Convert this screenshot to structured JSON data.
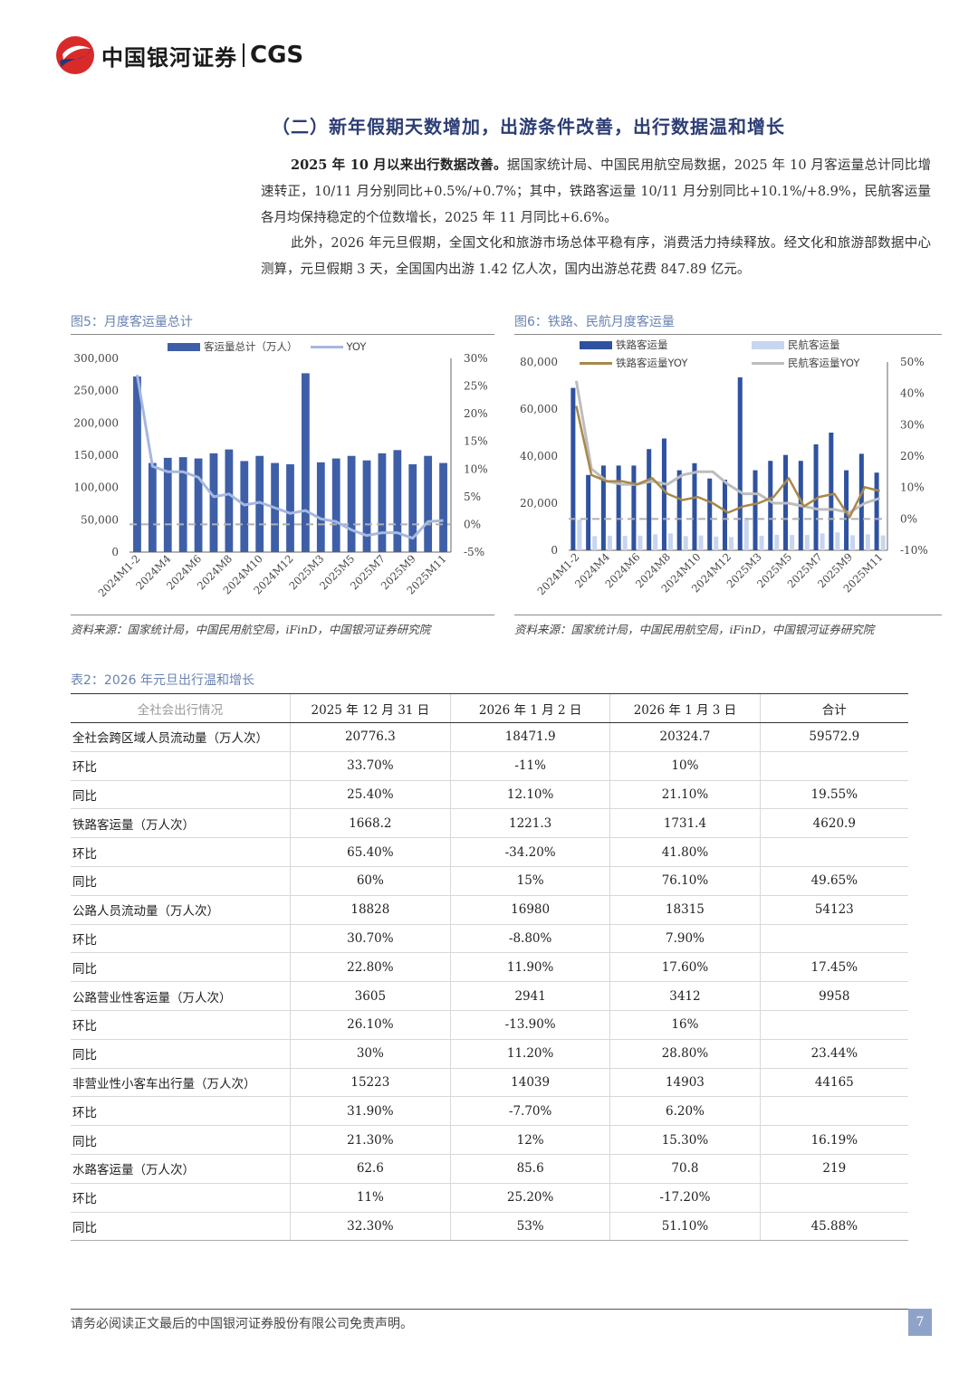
{
  "header": {
    "logo_cn": "中国银河证券",
    "logo_en": "CGS"
  },
  "section_title": "（二）新年假期天数增加，出游条件改善，出行数据温和增长",
  "para1_lead": "2025 年 10 月以来出行数据改善。",
  "para1_body": "据国家统计局、中国民用航空局数据，2025 年 10 月客运量总计同比增速转正，10/11 月分别同比+0.5%/+0.7%；其中，铁路客运量 10/11 月分别同比+10.1%/+8.9%，民航客运量各月均保持稳定的个位数增长，2025 年 11 月同比+6.6%。",
  "para2": "此外，2026 年元旦假期，全国文化和旅游市场总体平稳有序，消费活力持续释放。经文化和旅游部数据中心测算，元旦假期 3 天，全国国内出游 1.42 亿人次，国内出游总花费 847.89 亿元。",
  "fig5": {
    "title": "图5：月度客运量总计",
    "source": "资料来源：国家统计局，中国民用航空局，iFinD，中国银河证券研究院",
    "chart_data": {
      "type": "bar",
      "legend": [
        "客运量总计（万人）",
        "YOY"
      ],
      "categories": [
        "2024M1-2",
        "2024M3",
        "2024M4",
        "2024M5",
        "2024M6",
        "2024M7",
        "2024M8",
        "2024M9",
        "2024M10",
        "2024M11",
        "2024M12",
        "2025M1-2",
        "2025M3",
        "2025M4",
        "2025M5",
        "2025M6",
        "2025M7",
        "2025M8",
        "2025M9",
        "2025M10",
        "2025M11"
      ],
      "x_tick_labels": [
        "2024M1-2",
        "2024M4",
        "2024M6",
        "2024M8",
        "2024M10",
        "2024M12",
        "2025M3",
        "2025M5",
        "2025M7",
        "2025M9",
        "2025M11"
      ],
      "values": [
        272000,
        138000,
        146000,
        147000,
        145000,
        153000,
        159000,
        141000,
        149000,
        138000,
        136000,
        277000,
        139000,
        145000,
        149000,
        142000,
        153000,
        158000,
        136000,
        149000,
        138000
      ],
      "yoy": [
        27,
        10.5,
        9.5,
        9.5,
        8.5,
        5,
        5.5,
        3.5,
        4,
        3,
        2,
        2.5,
        1,
        0.5,
        -1,
        -2,
        -1.5,
        -1.5,
        -2.5,
        0.5,
        0.7
      ],
      "ylim": [
        0,
        300000
      ],
      "y_ticks": [
        "0",
        "50,000",
        "100,000",
        "150,000",
        "200,000",
        "250,000",
        "300,000"
      ],
      "y2lim": [
        -5,
        30
      ],
      "y2_ticks": [
        "-5%",
        "0%",
        "5%",
        "10%",
        "15%",
        "20%",
        "25%",
        "30%"
      ],
      "colors": {
        "bar": "#3e5fa8",
        "line": "#a6b8e0",
        "zero": "#b0b0b0"
      }
    }
  },
  "fig6": {
    "title": "图6：铁路、民航月度客运量",
    "source": "资料来源：国家统计局，中国民用航空局，iFinD，中国银河证券研究院",
    "chart_data": {
      "type": "bar",
      "legend": [
        "铁路客运量",
        "民航客运量",
        "铁路客运量YOY",
        "民航客运量YOY"
      ],
      "categories": [
        "2024M1-2",
        "2024M3",
        "2024M4",
        "2024M5",
        "2024M6",
        "2024M7",
        "2024M8",
        "2024M9",
        "2024M10",
        "2024M11",
        "2024M12",
        "2025M1-2",
        "2025M3",
        "2025M4",
        "2025M5",
        "2025M6",
        "2025M7",
        "2025M8",
        "2025M9",
        "2025M10",
        "2025M11"
      ],
      "x_tick_labels": [
        "2024M1-2",
        "2024M4",
        "2024M6",
        "2024M8",
        "2024M10",
        "2024M12",
        "2025M3",
        "2025M5",
        "2025M7",
        "2025M9",
        "2025M11"
      ],
      "series": [
        {
          "name": "铁路客运量",
          "values": [
            69000,
            32000,
            36000,
            36000,
            36000,
            43000,
            47500,
            34000,
            37000,
            30500,
            30000,
            73500,
            34000,
            38000,
            40500,
            38000,
            45000,
            50000,
            34000,
            41000,
            33000
          ]
        },
        {
          "name": "民航客运量",
          "values": [
            13000,
            6000,
            6200,
            6100,
            6200,
            6800,
            7200,
            6000,
            6300,
            5800,
            5600,
            13800,
            6200,
            6600,
            6500,
            6500,
            7200,
            7600,
            6400,
            6800,
            6300
          ]
        },
        {
          "name": "铁路客运量YOY",
          "values": [
            36,
            14,
            12,
            12,
            11,
            13,
            8,
            6,
            7,
            5,
            2,
            4,
            5,
            7,
            13,
            4,
            7,
            8,
            0.5,
            10.1,
            8.9
          ]
        },
        {
          "name": "民航客运量YOY",
          "values": [
            44,
            16,
            12,
            11,
            11,
            12,
            11,
            14,
            15,
            15,
            11,
            8,
            8,
            5,
            5,
            4,
            3,
            3,
            2,
            5,
            6.6
          ]
        }
      ],
      "ylim": [
        0,
        80000
      ],
      "y_ticks": [
        "0",
        "20,000",
        "40,000",
        "60,000",
        "80,000"
      ],
      "y2lim": [
        -10,
        50
      ],
      "y2_ticks": [
        "-10%",
        "0%",
        "10%",
        "20%",
        "30%",
        "40%",
        "50%"
      ],
      "colors": {
        "rail": "#2f52a0",
        "air": "#c7d5ee",
        "rail_yoy": "#a8884a",
        "air_yoy": "#bdbdbd",
        "zero": "#b0b0b0"
      }
    }
  },
  "table": {
    "title": "表2：2026 年元旦出行温和增长",
    "headers": [
      "全社会出行情况",
      "2025 年 12 月 31 日",
      "2026 年 1 月 2 日",
      "2026 年 1 月 3 日",
      "合计"
    ],
    "rows": [
      [
        "全社会跨区域人员流动量（万人次）",
        "20776.3",
        "18471.9",
        "20324.7",
        "59572.9"
      ],
      [
        "环比",
        "33.70%",
        "-11%",
        "10%",
        ""
      ],
      [
        "同比",
        "25.40%",
        "12.10%",
        "21.10%",
        "19.55%"
      ],
      [
        "铁路客运量（万人次）",
        "1668.2",
        "1221.3",
        "1731.4",
        "4620.9"
      ],
      [
        "环比",
        "65.40%",
        "-34.20%",
        "41.80%",
        ""
      ],
      [
        "同比",
        "60%",
        "15%",
        "76.10%",
        "49.65%"
      ],
      [
        "公路人员流动量（万人次）",
        "18828",
        "16980",
        "18315",
        "54123"
      ],
      [
        "环比",
        "30.70%",
        "-8.80%",
        "7.90%",
        ""
      ],
      [
        "同比",
        "22.80%",
        "11.90%",
        "17.60%",
        "17.45%"
      ],
      [
        "公路营业性客运量（万人次）",
        "3605",
        "2941",
        "3412",
        "9958"
      ],
      [
        "环比",
        "26.10%",
        "-13.90%",
        "16%",
        ""
      ],
      [
        "同比",
        "30%",
        "11.20%",
        "28.80%",
        "23.44%"
      ],
      [
        "非营业性小客车出行量（万人次）",
        "15223",
        "14039",
        "14903",
        "44165"
      ],
      [
        "环比",
        "31.90%",
        "-7.70%",
        "6.20%",
        ""
      ],
      [
        "同比",
        "21.30%",
        "12%",
        "15.30%",
        "16.19%"
      ],
      [
        "水路客运量（万人次）",
        "62.6",
        "85.6",
        "70.8",
        "219"
      ],
      [
        "环比",
        "11%",
        "25.20%",
        "-17.20%",
        ""
      ],
      [
        "同比",
        "32.30%",
        "53%",
        "51.10%",
        "45.88%"
      ]
    ]
  },
  "footer": {
    "disclaimer": "请务必阅读正文最后的中国银河证券股份有限公司免责声明。",
    "page": "7"
  }
}
